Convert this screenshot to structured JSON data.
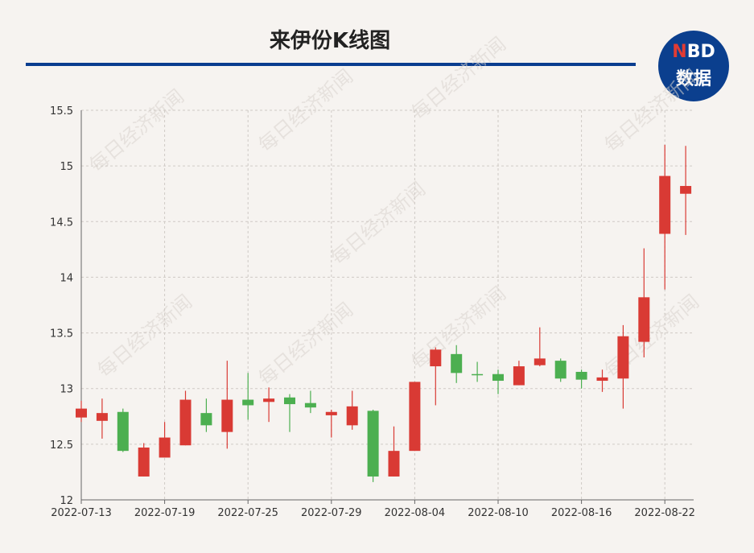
{
  "header": {
    "title": "来伊份K线图",
    "logo_top_a": "N",
    "logo_top_b": "BD",
    "logo_bottom": "数据"
  },
  "watermark_text": "每日经济新闻",
  "colors": {
    "up": "#d93a34",
    "down": "#4caf50",
    "grid": "#cfcac5",
    "accent": "#0a3d8f"
  },
  "chart_data": {
    "type": "candlestick",
    "title": "来伊份K线图",
    "xlabel": "",
    "ylabel": "",
    "ylim": [
      12,
      15.5
    ],
    "yticks": [
      "12",
      "12.5",
      "13",
      "13.5",
      "14",
      "14.5",
      "15",
      "15.5"
    ],
    "xtick_labels": [
      "2022-07-13",
      "2022-07-19",
      "2022-07-25",
      "2022-07-29",
      "2022-08-04",
      "2022-08-10",
      "2022-08-16",
      "2022-08-22"
    ],
    "grid": true,
    "candles": [
      {
        "date": "2022-07-13",
        "open": 12.74,
        "close": 12.82,
        "low": 12.7,
        "high": 12.89
      },
      {
        "date": "2022-07-14",
        "open": 12.71,
        "close": 12.78,
        "low": 12.55,
        "high": 12.91
      },
      {
        "date": "2022-07-15",
        "open": 12.79,
        "close": 12.44,
        "low": 12.43,
        "high": 12.82
      },
      {
        "date": "2022-07-18",
        "open": 12.21,
        "close": 12.47,
        "low": 12.21,
        "high": 12.51
      },
      {
        "date": "2022-07-19",
        "open": 12.38,
        "close": 12.56,
        "low": 12.38,
        "high": 12.7
      },
      {
        "date": "2022-07-20",
        "open": 12.49,
        "close": 12.9,
        "low": 12.49,
        "high": 12.98
      },
      {
        "date": "2022-07-21",
        "open": 12.78,
        "close": 12.67,
        "low": 12.61,
        "high": 12.91
      },
      {
        "date": "2022-07-22",
        "open": 12.61,
        "close": 12.9,
        "low": 12.46,
        "high": 13.25
      },
      {
        "date": "2022-07-25",
        "open": 12.9,
        "close": 12.85,
        "low": 12.72,
        "high": 13.14
      },
      {
        "date": "2022-07-26",
        "open": 12.88,
        "close": 12.91,
        "low": 12.7,
        "high": 13.01
      },
      {
        "date": "2022-07-27",
        "open": 12.92,
        "close": 12.86,
        "low": 12.61,
        "high": 12.95
      },
      {
        "date": "2022-07-28",
        "open": 12.87,
        "close": 12.83,
        "low": 12.78,
        "high": 12.98
      },
      {
        "date": "2022-07-29",
        "open": 12.76,
        "close": 12.79,
        "low": 12.56,
        "high": 12.81
      },
      {
        "date": "2022-08-01",
        "open": 12.67,
        "close": 12.84,
        "low": 12.63,
        "high": 12.98
      },
      {
        "date": "2022-08-02",
        "open": 12.8,
        "close": 12.21,
        "low": 12.16,
        "high": 12.81
      },
      {
        "date": "2022-08-03",
        "open": 12.21,
        "close": 12.44,
        "low": 12.21,
        "high": 12.66
      },
      {
        "date": "2022-08-04",
        "open": 12.44,
        "close": 13.06,
        "low": 12.44,
        "high": 13.06
      },
      {
        "date": "2022-08-05",
        "open": 13.2,
        "close": 13.35,
        "low": 12.85,
        "high": 13.37
      },
      {
        "date": "2022-08-08",
        "open": 13.31,
        "close": 13.14,
        "low": 13.05,
        "high": 13.39
      },
      {
        "date": "2022-08-09",
        "open": 13.13,
        "close": 13.12,
        "low": 13.06,
        "high": 13.24
      },
      {
        "date": "2022-08-10",
        "open": 13.13,
        "close": 13.07,
        "low": 12.95,
        "high": 13.17
      },
      {
        "date": "2022-08-11",
        "open": 13.03,
        "close": 13.2,
        "low": 13.03,
        "high": 13.25
      },
      {
        "date": "2022-08-12",
        "open": 13.21,
        "close": 13.27,
        "low": 13.2,
        "high": 13.55
      },
      {
        "date": "2022-08-15",
        "open": 13.25,
        "close": 13.09,
        "low": 13.06,
        "high": 13.27
      },
      {
        "date": "2022-08-16",
        "open": 13.15,
        "close": 13.08,
        "low": 13.0,
        "high": 13.17
      },
      {
        "date": "2022-08-17",
        "open": 13.07,
        "close": 13.1,
        "low": 12.97,
        "high": 13.17
      },
      {
        "date": "2022-08-18",
        "open": 13.09,
        "close": 13.47,
        "low": 12.82,
        "high": 13.57
      },
      {
        "date": "2022-08-19",
        "open": 13.42,
        "close": 13.82,
        "low": 13.28,
        "high": 14.26
      },
      {
        "date": "2022-08-22",
        "open": 14.39,
        "close": 14.91,
        "low": 13.89,
        "high": 15.19
      },
      {
        "date": "2022-08-23",
        "open": 14.75,
        "close": 14.82,
        "low": 14.38,
        "high": 15.18
      }
    ]
  }
}
